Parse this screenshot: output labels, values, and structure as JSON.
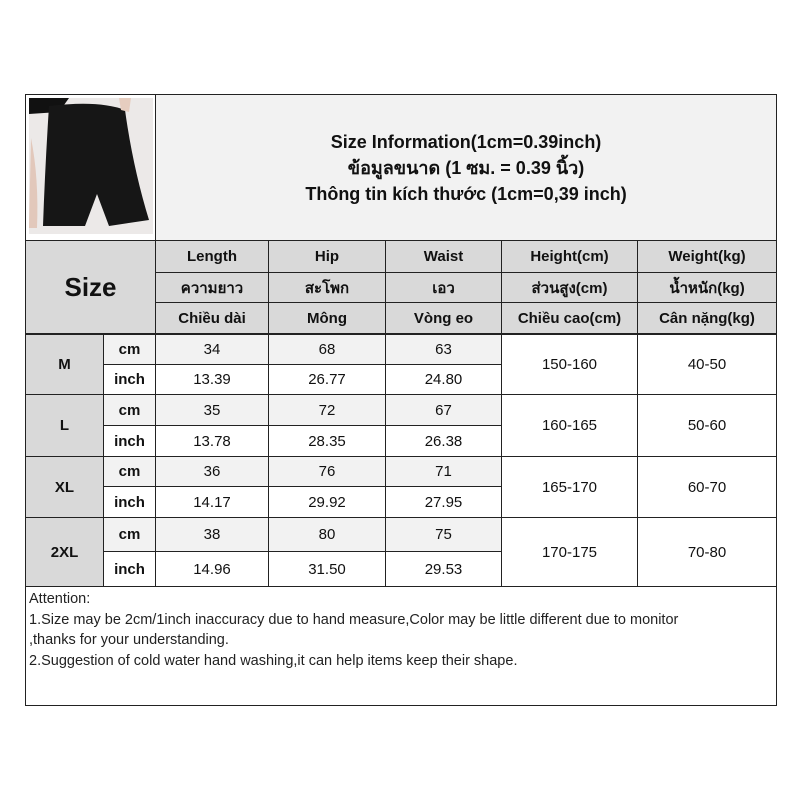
{
  "product_image": {
    "alt": "black high-waist shorts",
    "icon": "product-photo"
  },
  "title": {
    "line1": "Size Information(1cm=0.39inch)",
    "line2": "ข้อมูลขนาด (1 ซม. = 0.39 นิ้ว)",
    "line3": "Thông tin kích thước (1cm=0,39 inch)"
  },
  "size_label": "Size",
  "headers": [
    {
      "en": "Length",
      "th": "ความยาว",
      "vi": "Chiều dài"
    },
    {
      "en": "Hip",
      "th": "สะโพก",
      "vi": "Mông"
    },
    {
      "en": "Waist",
      "th": "เอว",
      "vi": "Vòng eo"
    },
    {
      "en": "Height(cm)",
      "th": "ส่วนสูง(cm)",
      "vi": "Chiều cao(cm)"
    },
    {
      "en": "Weight(kg)",
      "th": "น้ำหนัก(kg)",
      "vi": "Cân nặng(kg)"
    }
  ],
  "units": {
    "cm": "cm",
    "inch": "inch"
  },
  "rows": [
    {
      "size": "M",
      "cm": [
        "34",
        "68",
        "63"
      ],
      "inch": [
        "13.39",
        "26.77",
        "24.80"
      ],
      "height": "150-160",
      "weight": "40-50"
    },
    {
      "size": "L",
      "cm": [
        "35",
        "72",
        "67"
      ],
      "inch": [
        "13.78",
        "28.35",
        "26.38"
      ],
      "height": "160-165",
      "weight": "50-60"
    },
    {
      "size": "XL",
      "cm": [
        "36",
        "76",
        "71"
      ],
      "inch": [
        "14.17",
        "29.92",
        "27.95"
      ],
      "height": "165-170",
      "weight": "60-70"
    },
    {
      "size": "2XL",
      "cm": [
        "38",
        "80",
        "75"
      ],
      "inch": [
        "14.96",
        "31.50",
        "29.53"
      ],
      "height": "170-175",
      "weight": "70-80"
    }
  ],
  "attention": {
    "heading": "Attention:",
    "line1": "1.Size may be 2cm/1inch inaccuracy due to hand measure,Color may be little different due to monitor",
    "line1b": ",thanks for your understanding.",
    "line2": "2.Suggestion of cold water hand washing,it can help items keep their shape."
  }
}
